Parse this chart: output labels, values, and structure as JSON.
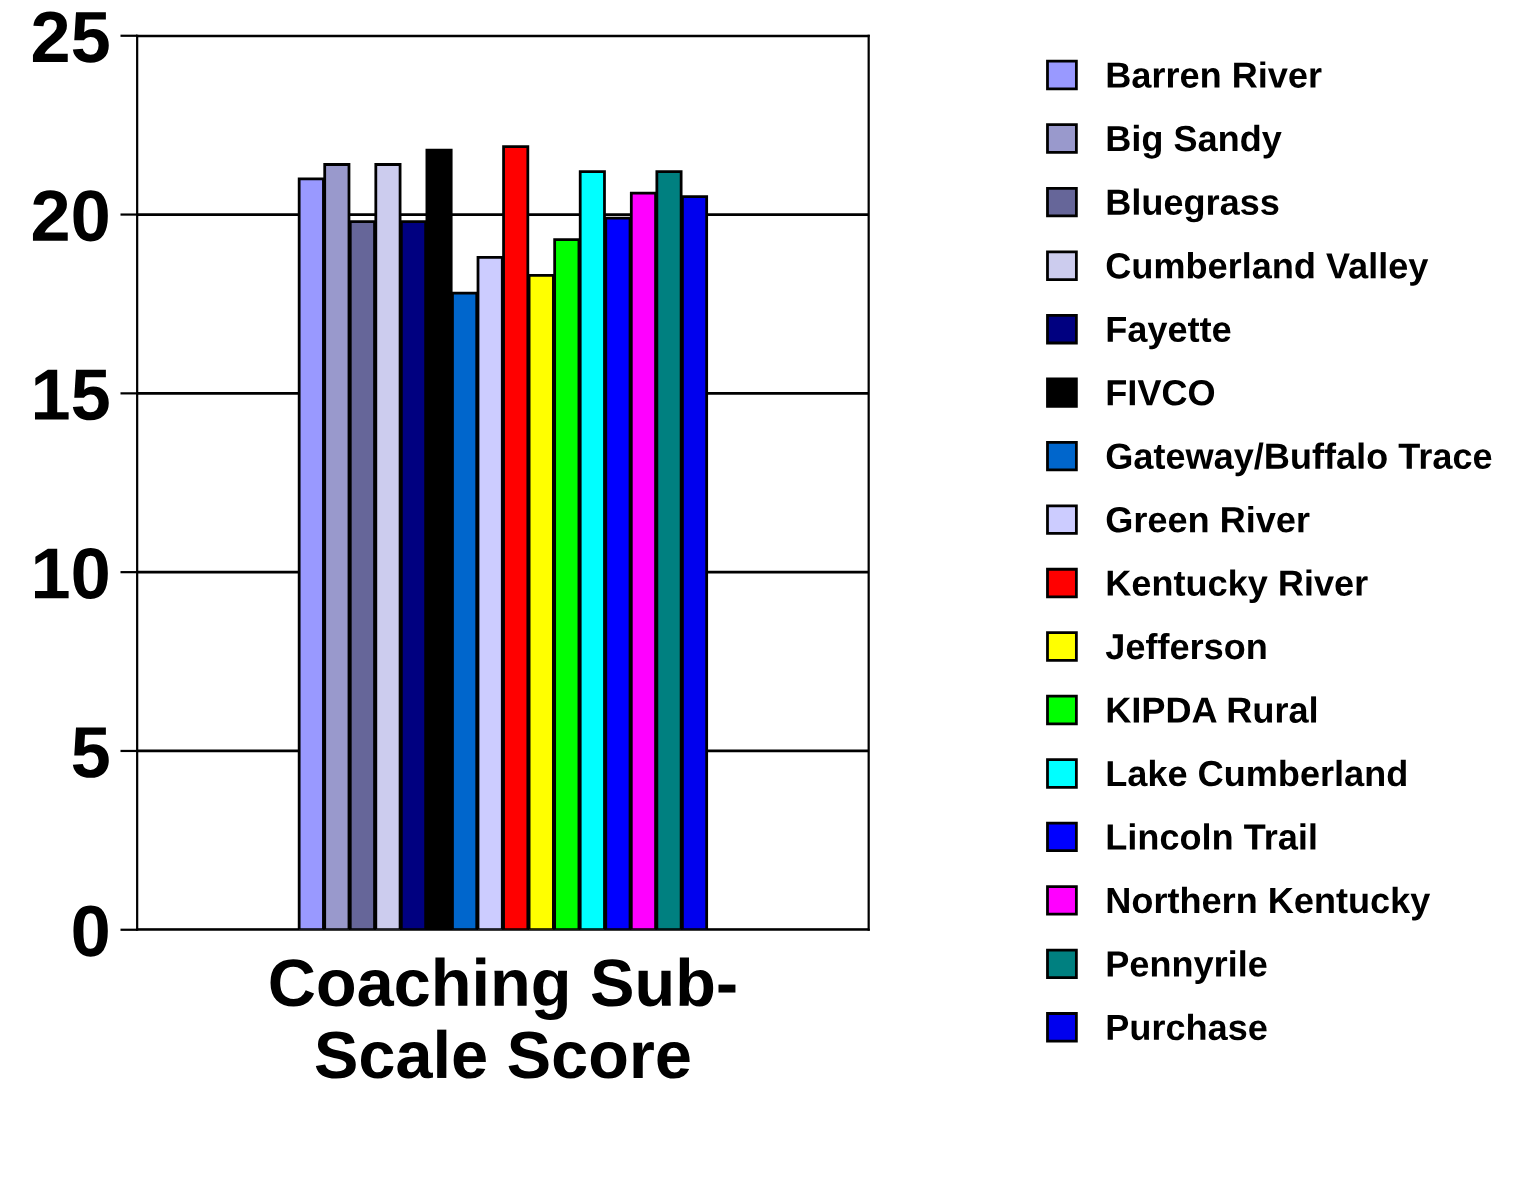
{
  "chart_data": {
    "type": "bar",
    "categories": [
      "Coaching Sub-Scale Score"
    ],
    "ylim": [
      0,
      25
    ],
    "yticks": [
      0,
      5,
      10,
      15,
      20,
      25
    ],
    "grid": "y",
    "legend": "right",
    "series": [
      {
        "name": "Barren River",
        "color": "#9999ff",
        "values": [
          21.0
        ]
      },
      {
        "name": "Big Sandy",
        "color": "#9999cc",
        "values": [
          21.4
        ]
      },
      {
        "name": "Bluegrass",
        "color": "#666699",
        "values": [
          19.8
        ]
      },
      {
        "name": "Cumberland Valley",
        "color": "#ccccee",
        "values": [
          21.4
        ]
      },
      {
        "name": "Fayette",
        "color": "#000080",
        "values": [
          19.8
        ]
      },
      {
        "name": "FIVCO",
        "color": "#000000",
        "values": [
          21.8
        ]
      },
      {
        "name": "Gateway/Buffalo Trace",
        "color": "#0066cc",
        "values": [
          17.8
        ]
      },
      {
        "name": "Green River",
        "color": "#ccccff",
        "values": [
          18.8
        ]
      },
      {
        "name": "Kentucky River",
        "color": "#ff0000",
        "values": [
          21.9
        ]
      },
      {
        "name": "Jefferson",
        "color": "#ffff00",
        "values": [
          18.3
        ]
      },
      {
        "name": "KIPDA Rural",
        "color": "#00ff00",
        "values": [
          19.3
        ]
      },
      {
        "name": "Lake Cumberland",
        "color": "#00ffff",
        "values": [
          21.2
        ]
      },
      {
        "name": "Lincoln Trail",
        "color": "#0000ff",
        "values": [
          19.9
        ]
      },
      {
        "name": "Northern Kentucky",
        "color": "#ff00ff",
        "values": [
          20.6
        ]
      },
      {
        "name": "Pennyrile",
        "color": "#008080",
        "values": [
          21.2
        ]
      },
      {
        "name": "Purchase",
        "color": "#0000ee",
        "values": [
          20.5
        ]
      }
    ]
  }
}
